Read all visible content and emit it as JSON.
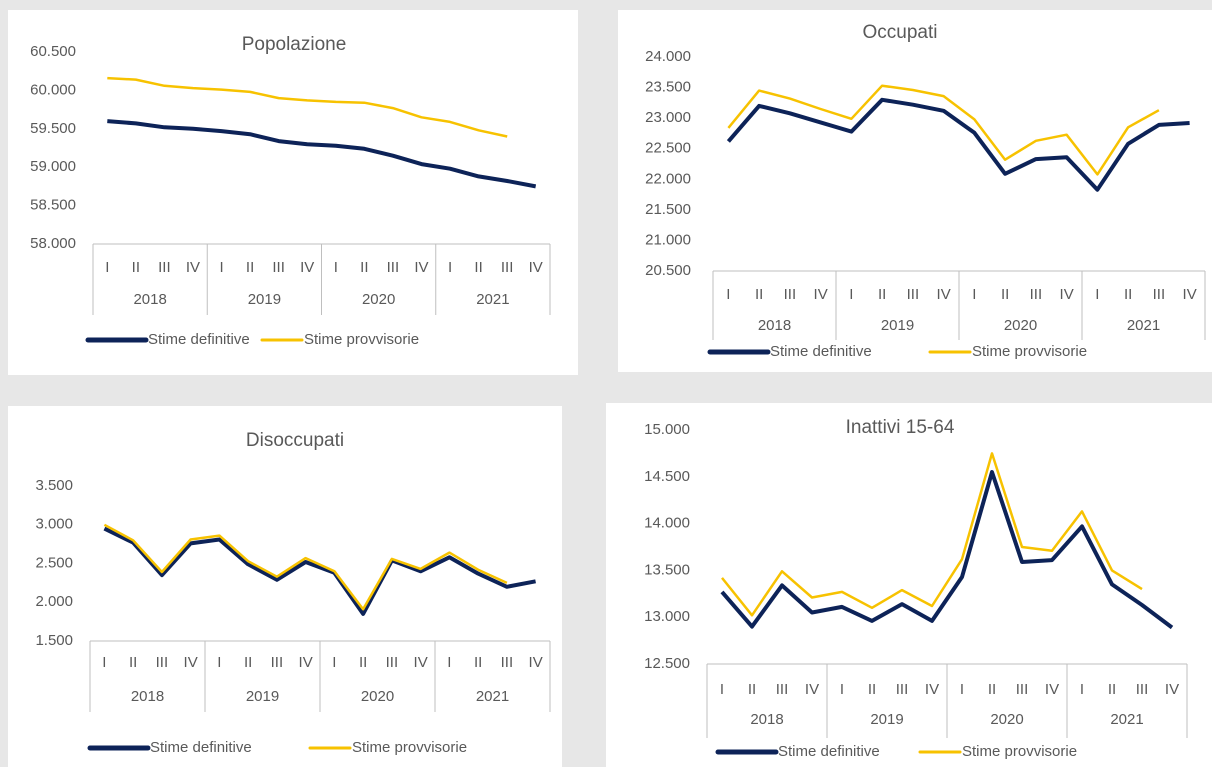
{
  "chart_data": [
    {
      "type": "line",
      "title": "Popolazione",
      "categories": [
        "I",
        "II",
        "III",
        "IV",
        "I",
        "II",
        "III",
        "IV",
        "I",
        "II",
        "III",
        "IV",
        "I",
        "II",
        "III",
        "IV"
      ],
      "years": [
        "2018",
        "2019",
        "2020",
        "2021"
      ],
      "ylim": [
        58000,
        60500
      ],
      "yticks": [
        {
          "value": 58000,
          "label": "58.000"
        },
        {
          "value": 58500,
          "label": "58.500"
        },
        {
          "value": 59000,
          "label": "59.000"
        },
        {
          "value": 59500,
          "label": "59.500"
        },
        {
          "value": 60000,
          "label": "60.000"
        },
        {
          "value": 60500,
          "label": "60.500"
        }
      ],
      "legend": "bottom",
      "series": [
        {
          "name": "Stime definitive",
          "color": "#0d2358",
          "values": [
            59600,
            59570,
            59520,
            59500,
            59470,
            59430,
            59340,
            59300,
            59280,
            59240,
            59150,
            59040,
            58980,
            58880,
            58820,
            58750
          ]
        },
        {
          "name": "Stime provvisorie",
          "color": "#f7c200",
          "values": [
            60160,
            60140,
            60060,
            60030,
            60010,
            59980,
            59900,
            59870,
            59850,
            59840,
            59770,
            59650,
            59590,
            59480,
            59400,
            null
          ]
        }
      ]
    },
    {
      "type": "line",
      "title": "Occupati",
      "categories": [
        "I",
        "II",
        "III",
        "IV",
        "I",
        "II",
        "III",
        "IV",
        "I",
        "II",
        "III",
        "IV",
        "I",
        "II",
        "III",
        "IV"
      ],
      "years": [
        "2018",
        "2019",
        "2020",
        "2021"
      ],
      "ylim": [
        20500,
        24000
      ],
      "yticks": [
        {
          "value": 20500,
          "label": "20.500"
        },
        {
          "value": 21000,
          "label": "21.000"
        },
        {
          "value": 21500,
          "label": "21.500"
        },
        {
          "value": 22000,
          "label": "22.000"
        },
        {
          "value": 22500,
          "label": "22.500"
        },
        {
          "value": 23000,
          "label": "23.000"
        },
        {
          "value": 23500,
          "label": "23.500"
        },
        {
          "value": 24000,
          "label": "24.000"
        }
      ],
      "legend": "bottom",
      "series": [
        {
          "name": "Stime definitive",
          "color": "#0d2358",
          "values": [
            22620,
            23200,
            23080,
            22930,
            22780,
            23300,
            23220,
            23120,
            22760,
            22090,
            22330,
            22360,
            21830,
            22580,
            22890,
            22920
          ]
        },
        {
          "name": "Stime provvisorie",
          "color": "#f7c200",
          "values": [
            22840,
            23450,
            23320,
            23150,
            22990,
            23530,
            23460,
            23360,
            22980,
            22320,
            22630,
            22730,
            22080,
            22850,
            23130,
            null
          ]
        }
      ]
    },
    {
      "type": "line",
      "title": "Disoccupati",
      "categories": [
        "I",
        "II",
        "III",
        "IV",
        "I",
        "II",
        "III",
        "IV",
        "I",
        "II",
        "III",
        "IV",
        "I",
        "II",
        "III",
        "IV"
      ],
      "years": [
        "2018",
        "2019",
        "2020",
        "2021"
      ],
      "ylim": [
        1500,
        3500
      ],
      "yticks": [
        {
          "value": 1500,
          "label": "1.500"
        },
        {
          "value": 2000,
          "label": "2.000"
        },
        {
          "value": 2500,
          "label": "2.500"
        },
        {
          "value": 3000,
          "label": "3.000"
        },
        {
          "value": 3500,
          "label": "3.500"
        }
      ],
      "legend": "bottom",
      "series": [
        {
          "name": "Stime definitive",
          "color": "#0d2358",
          "values": [
            2950,
            2770,
            2350,
            2760,
            2810,
            2490,
            2290,
            2520,
            2380,
            1850,
            2540,
            2400,
            2580,
            2370,
            2200,
            2270
          ]
        },
        {
          "name": "Stime provvisorie",
          "color": "#f7c200",
          "values": [
            3000,
            2800,
            2390,
            2810,
            2860,
            2530,
            2330,
            2570,
            2400,
            1910,
            2560,
            2430,
            2640,
            2420,
            2250,
            null
          ]
        }
      ]
    },
    {
      "type": "line",
      "title": "Inattivi 15-64",
      "categories": [
        "I",
        "II",
        "III",
        "IV",
        "I",
        "II",
        "III",
        "IV",
        "I",
        "II",
        "III",
        "IV",
        "I",
        "II",
        "III",
        "IV"
      ],
      "years": [
        "2018",
        "2019",
        "2020",
        "2021"
      ],
      "ylim": [
        12500,
        15000
      ],
      "yticks": [
        {
          "value": 12500,
          "label": "12.500"
        },
        {
          "value": 13000,
          "label": "13.000"
        },
        {
          "value": 13500,
          "label": "13.500"
        },
        {
          "value": 14000,
          "label": "14.000"
        },
        {
          "value": 14500,
          "label": "14.500"
        },
        {
          "value": 15000,
          "label": "15.000"
        }
      ],
      "legend": "bottom",
      "series": [
        {
          "name": "Stime definitive",
          "color": "#0d2358",
          "values": [
            13270,
            12900,
            13340,
            13050,
            13110,
            12960,
            13140,
            12960,
            13430,
            14550,
            13590,
            13610,
            13970,
            13350,
            13130,
            12890
          ]
        },
        {
          "name": "Stime provvisorie",
          "color": "#f7c200",
          "values": [
            13420,
            13020,
            13490,
            13210,
            13270,
            13100,
            13290,
            13120,
            13620,
            14750,
            13750,
            13710,
            14130,
            13500,
            13300,
            null
          ]
        }
      ]
    }
  ]
}
